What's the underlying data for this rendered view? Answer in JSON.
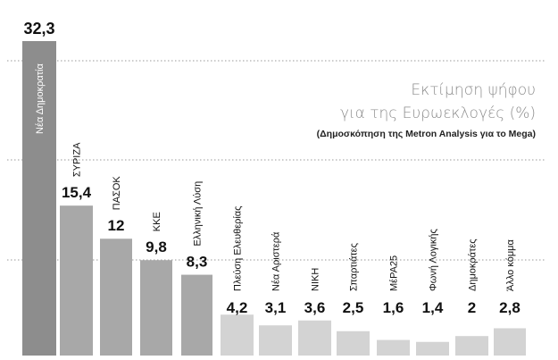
{
  "chart_data": {
    "type": "bar",
    "title": [
      "Εκτίμηση ψήφου",
      "για  της Ευρωεκλογές (%)"
    ],
    "subtitle": "(Δημοσκόπηση της Metron Analysis για το Mega)",
    "ylim": [
      0,
      32.3
    ],
    "grid": true,
    "categories": [
      "Νέα Δημοκρατία",
      "ΣΥΡΙΖΑ",
      "ΠΑΣΟΚ",
      "ΚΚΕ",
      "Ελληνική Λύση",
      "Πλεύση Ελευθερίας",
      "Νέα Αριστερά",
      "ΝΙΚΗ",
      "Σπαρτιάτες",
      "ΜέΡΑ25",
      "Φωνή Λογικής",
      "Δημοκράτες",
      "Άλλο κόμμα"
    ],
    "labels": [
      "32,3",
      "15,4",
      "12",
      "9,8",
      "8,3",
      "4,2",
      "3,1",
      "3,6",
      "2,5",
      "1,6",
      "1,4",
      "2",
      "2,8"
    ],
    "values": [
      32.3,
      15.4,
      12,
      9.8,
      8.3,
      4.2,
      3.1,
      3.6,
      2.5,
      1.6,
      1.4,
      2,
      2.8
    ],
    "colors": {
      "first": "#8d8d8d",
      "group2": "#a8a8a8",
      "group3": "#d3d3d3",
      "grid": "#9a9a9a"
    }
  }
}
